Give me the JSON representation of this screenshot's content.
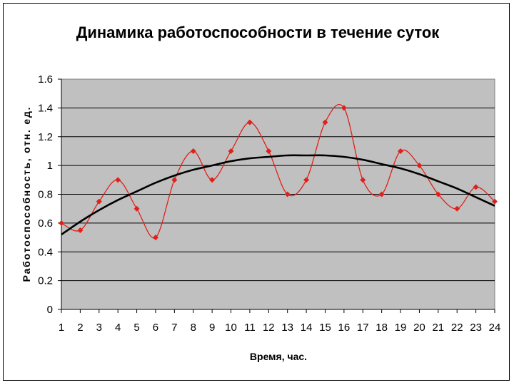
{
  "chart_data": {
    "type": "line",
    "title": "Динамика работоспособности в течение суток",
    "xlabel": "Время, час.",
    "ylabel": "Работоспособность, отн. ед.",
    "ylim": [
      0,
      1.6
    ],
    "yticks": [
      "0",
      "0.2",
      "0.4",
      "0.6",
      "0.8",
      "1",
      "1.2",
      "1.4",
      "1.6"
    ],
    "x": [
      1,
      2,
      3,
      4,
      5,
      6,
      7,
      8,
      9,
      10,
      11,
      12,
      13,
      14,
      15,
      16,
      17,
      18,
      19,
      20,
      21,
      22,
      23,
      24
    ],
    "grid": true,
    "legend": "none",
    "plot_background": "#c0c0c0",
    "series": [
      {
        "color": "#e0201a",
        "marker": "diamond",
        "smooth": true,
        "values": [
          0.6,
          0.55,
          0.75,
          0.9,
          0.7,
          0.5,
          0.9,
          1.1,
          0.9,
          1.1,
          1.3,
          1.1,
          0.8,
          0.9,
          1.3,
          1.4,
          0.9,
          0.8,
          1.1,
          1.0,
          0.8,
          0.7,
          0.85,
          0.75
        ]
      },
      {
        "color": "#000000",
        "marker": "none",
        "trend": true,
        "values": [
          0.52,
          0.61,
          0.69,
          0.76,
          0.82,
          0.88,
          0.93,
          0.97,
          1.0,
          1.03,
          1.05,
          1.06,
          1.07,
          1.07,
          1.07,
          1.06,
          1.04,
          1.01,
          0.98,
          0.94,
          0.89,
          0.84,
          0.78,
          0.72
        ]
      }
    ]
  }
}
